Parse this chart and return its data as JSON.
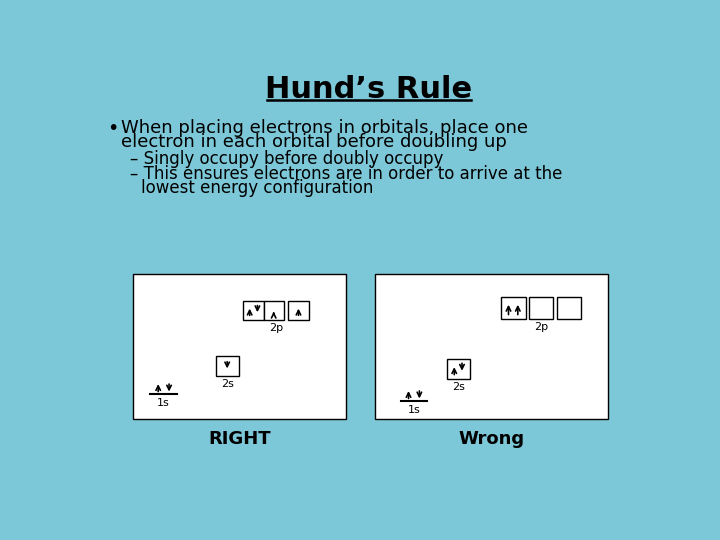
{
  "bg_color": "#7DC8D8",
  "title": "Hund’s Rule",
  "title_fontsize": 22,
  "bullet1_line1": "When placing electrons in orbitals, place one",
  "bullet1_line2": "electron in each orbital before doubling up",
  "sub1": "Singly occupy before doubly occupy",
  "sub2_line1": "This ensures electrons are in order to arrive at the",
  "sub2_line2": "lowest energy configuration",
  "right_label": "RIGHT",
  "wrong_label": "Wrong",
  "box_bg": "#FFFFFF"
}
